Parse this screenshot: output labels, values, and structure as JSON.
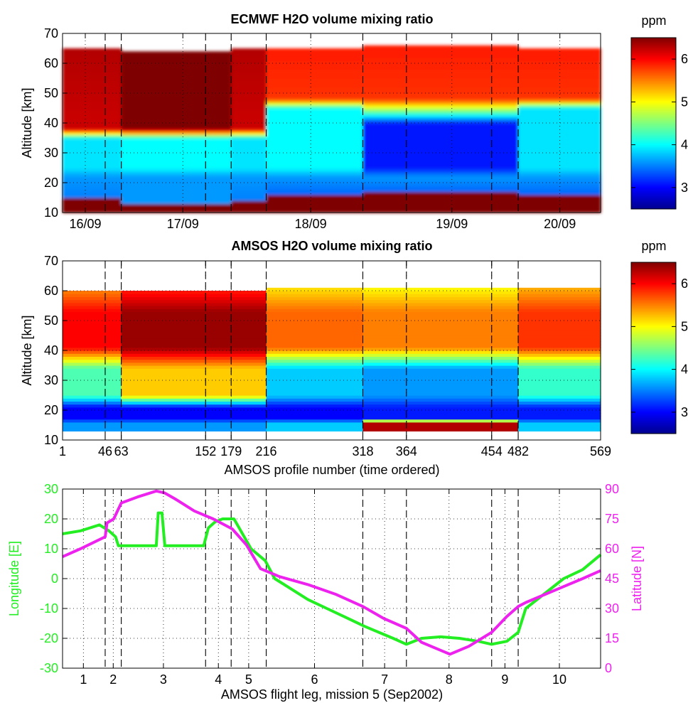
{
  "colors": {
    "longitude": "#22ee22",
    "latitude": "#ee22ee",
    "colormap": [
      "#00008f",
      "#0000ff",
      "#007fff",
      "#00ffff",
      "#7fff7f",
      "#ffff00",
      "#ff7f00",
      "#ff0000",
      "#7f0000"
    ]
  },
  "chart_data": [
    {
      "type": "heatmap",
      "title": "ECMWF H2O volume mixing ratio",
      "ylabel": "Altitude [km]",
      "ylim": [
        10,
        70
      ],
      "yticks": [
        10,
        20,
        30,
        40,
        50,
        60,
        70
      ],
      "xlim": [
        1,
        569
      ],
      "xtick_positions": [
        25,
        128,
        263,
        412,
        526
      ],
      "xtick_labels": [
        "16/09",
        "17/09",
        "18/09",
        "19/09",
        "20/09"
      ],
      "grid": true,
      "leg_boundaries": [
        46,
        63,
        152,
        179,
        216,
        318,
        364,
        454,
        482
      ],
      "colorbar": {
        "label": "ppm",
        "range": [
          2.5,
          6.5
        ],
        "ticks": [
          3,
          4,
          5,
          6
        ]
      },
      "structure": [
        {
          "x_range": [
            1,
            63
          ],
          "top_km": 65,
          "surface_km": 15,
          "mixing_ratio_ppm": {
            "above_38km": 6.2,
            "25_to_35km": 3.9,
            "near_surface": 3.5
          }
        },
        {
          "x_range": [
            63,
            179
          ],
          "top_km": 64,
          "surface_km": 13,
          "mixing_ratio_ppm": {
            "above_38km": 6.5,
            "25_to_35km": 4.0,
            "near_surface": 3.6
          }
        },
        {
          "x_range": [
            179,
            216
          ],
          "top_km": 65,
          "surface_km": 14,
          "mixing_ratio_ppm": {
            "above_38km": 6.2,
            "25_to_35km": 3.9,
            "near_surface": 3.5
          }
        },
        {
          "x_range": [
            216,
            318
          ],
          "top_km": 65,
          "surface_km": 16,
          "mixing_ratio_ppm": {
            "above_50km": 5.8,
            "25_to_45km": 4.0,
            "near_surface": 3.4
          }
        },
        {
          "x_range": [
            318,
            482
          ],
          "top_km": 66,
          "surface_km": 17,
          "mixing_ratio_ppm": {
            "above_50km": 5.8,
            "25_to_40km": 3.1,
            "near_surface": 3.4
          }
        },
        {
          "x_range": [
            482,
            569
          ],
          "top_km": 65,
          "surface_km": 16,
          "mixing_ratio_ppm": {
            "above_50km": 5.8,
            "25_to_45km": 3.9,
            "near_surface": 3.4
          }
        }
      ]
    },
    {
      "type": "heatmap",
      "title": "AMSOS H2O volume mixing ratio",
      "xlabel": "AMSOS profile number (time ordered)",
      "ylabel": "Altitude [km]",
      "ylim": [
        10,
        70
      ],
      "yticks": [
        10,
        20,
        30,
        40,
        50,
        60,
        70
      ],
      "xlim": [
        1,
        569
      ],
      "xticks": [
        1,
        46,
        63,
        152,
        179,
        216,
        318,
        364,
        454,
        482,
        569
      ],
      "grid": true,
      "leg_boundaries": [
        46,
        63,
        152,
        179,
        216,
        318,
        364,
        454,
        482
      ],
      "colorbar": {
        "label": "ppm",
        "range": [
          2.5,
          6.5
        ],
        "ticks": [
          3,
          4,
          5,
          6
        ]
      },
      "structure": [
        {
          "x_range": [
            1,
            63
          ],
          "top_km": 60,
          "mixing_ratio_ppm": {
            "40_to_55km": 6.0,
            "28_to_35km": 4.3,
            "17_to_22km": 3.0,
            "near_surface": 3.6
          }
        },
        {
          "x_range": [
            63,
            216
          ],
          "top_km": 60,
          "mixing_ratio_ppm": {
            "40_to_55km": 6.4,
            "28_to_35km": 5.2,
            "17_to_22km": 3.0,
            "near_surface": 3.6
          }
        },
        {
          "x_range": [
            216,
            318
          ],
          "top_km": 61,
          "mixing_ratio_ppm": {
            "40_to_55km": 5.6,
            "23_to_35km": 3.8,
            "17_to_22km": 3.0,
            "near_surface": 3.8
          }
        },
        {
          "x_range": [
            318,
            482
          ],
          "top_km": 61,
          "mixing_ratio_ppm": {
            "40_to_55km": 5.5,
            "23_to_35km": 3.6,
            "17_to_22km": 3.1,
            "near_surface": 6.3
          }
        },
        {
          "x_range": [
            482,
            569
          ],
          "top_km": 61,
          "mixing_ratio_ppm": {
            "40_to_55km": 5.8,
            "25_to_35km": 4.2,
            "17_to_22km": 3.1,
            "near_surface": 3.8
          }
        }
      ]
    },
    {
      "type": "line",
      "xlabel": "AMSOS flight leg, mission 5 (Sep2002)",
      "xlim": [
        1,
        569
      ],
      "xtick_labels": [
        "1",
        "2",
        "3",
        "4",
        "5",
        "6",
        "7",
        "8",
        "9",
        "10"
      ],
      "xtick_positions": [
        23,
        54.5,
        107.5,
        165.5,
        197.5,
        267,
        341,
        409,
        468,
        525.5
      ],
      "leg_boundaries": [
        46,
        63,
        152,
        179,
        216,
        318,
        364,
        454,
        482
      ],
      "grid": true,
      "ylabel_left": "Longitude [E]",
      "ylim_left": [
        -30,
        30
      ],
      "yticks_left": [
        -30,
        -20,
        -10,
        0,
        10,
        20,
        30
      ],
      "ylabel_right": "Latitude [N]",
      "ylim_right": [
        0,
        90
      ],
      "yticks_right": [
        0,
        15,
        30,
        45,
        60,
        75,
        90
      ],
      "series": [
        {
          "name": "Longitude [E]",
          "axis": "left",
          "x": [
            1,
            20,
            40,
            50,
            57,
            60,
            100,
            102,
            106,
            109,
            150,
            155,
            162,
            170,
            182,
            200,
            215,
            225,
            240,
            260,
            280,
            300,
            320,
            350,
            364,
            380,
            400,
            420,
            440,
            454,
            470,
            482,
            490,
            510,
            530,
            550,
            569
          ],
          "y": [
            15,
            16,
            18,
            16,
            14,
            11,
            11,
            22,
            22,
            11,
            11,
            17,
            19,
            20,
            20,
            10,
            6,
            0,
            -3,
            -7,
            -10,
            -13,
            -16,
            -20,
            -22,
            -20,
            -19.5,
            -20,
            -21,
            -22,
            -21,
            -18,
            -10,
            -5,
            0,
            3,
            8
          ]
        },
        {
          "name": "Latitude [N]",
          "axis": "right",
          "x": [
            1,
            20,
            46,
            48,
            55,
            63,
            80,
            100,
            109,
            120,
            140,
            160,
            180,
            195,
            210,
            230,
            260,
            290,
            318,
            340,
            364,
            380,
            400,
            410,
            430,
            454,
            470,
            482,
            490,
            510,
            530,
            550,
            569
          ],
          "y": [
            56,
            60,
            66,
            73,
            75,
            83,
            86,
            89,
            88,
            85,
            79,
            75,
            70,
            62,
            50,
            46,
            42,
            37,
            31,
            25,
            20,
            13,
            9,
            7,
            11,
            18,
            26,
            31,
            33,
            37,
            41,
            45,
            49
          ]
        }
      ]
    }
  ]
}
